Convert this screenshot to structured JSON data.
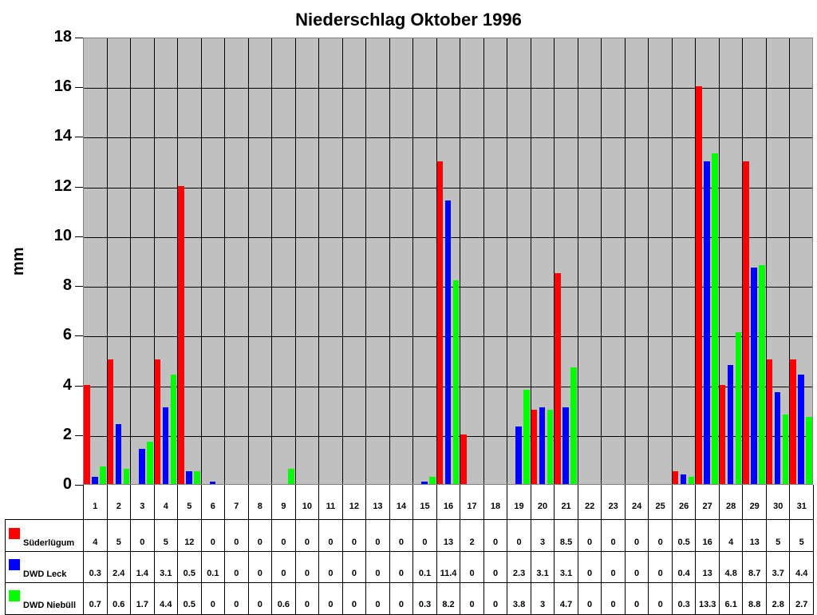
{
  "chart_data": {
    "type": "bar",
    "title": "Niederschlag Oktober 1996",
    "xlabel": "",
    "ylabel": "mm",
    "ylim": [
      0,
      18
    ],
    "yticks": [
      0,
      2,
      4,
      6,
      8,
      10,
      12,
      14,
      16,
      18
    ],
    "grid": true,
    "legend_position": "data-table-left",
    "categories": [
      "1",
      "2",
      "3",
      "4",
      "5",
      "6",
      "7",
      "8",
      "9",
      "10",
      "11",
      "12",
      "13",
      "14",
      "15",
      "16",
      "17",
      "18",
      "19",
      "20",
      "21",
      "22",
      "23",
      "24",
      "25",
      "26",
      "27",
      "28",
      "29",
      "30",
      "31"
    ],
    "series": [
      {
        "name": "Süderlügum",
        "color": "#ff0000",
        "values": [
          4,
          5,
          0,
          5,
          12,
          0,
          0,
          0,
          0,
          0,
          0,
          0,
          0,
          0,
          0,
          13,
          2,
          0,
          0,
          3,
          8.5,
          0,
          0,
          0,
          0,
          0.5,
          16,
          4,
          13,
          5,
          5
        ]
      },
      {
        "name": "DWD Leck",
        "color": "#0000ff",
        "values": [
          0.3,
          2.4,
          1.4,
          3.1,
          0.5,
          0.1,
          0,
          0,
          0,
          0,
          0,
          0,
          0,
          0,
          0.1,
          11.4,
          0,
          0,
          2.3,
          3.1,
          3.1,
          0,
          0,
          0,
          0,
          0.4,
          13,
          4.8,
          8.7,
          3.7,
          4.4
        ]
      },
      {
        "name": "DWD Niebüll",
        "color": "#00ff00",
        "values": [
          0.7,
          0.6,
          1.7,
          4.4,
          0.5,
          0,
          0,
          0,
          0.6,
          0,
          0,
          0,
          0,
          0,
          0.3,
          8.2,
          0,
          0,
          3.8,
          3,
          4.7,
          0,
          0,
          0,
          0,
          0.3,
          13.3,
          6.1,
          8.8,
          2.8,
          2.7
        ]
      }
    ]
  },
  "colors": {
    "plot_background": "#c0c0c0",
    "grid": "#000000"
  }
}
